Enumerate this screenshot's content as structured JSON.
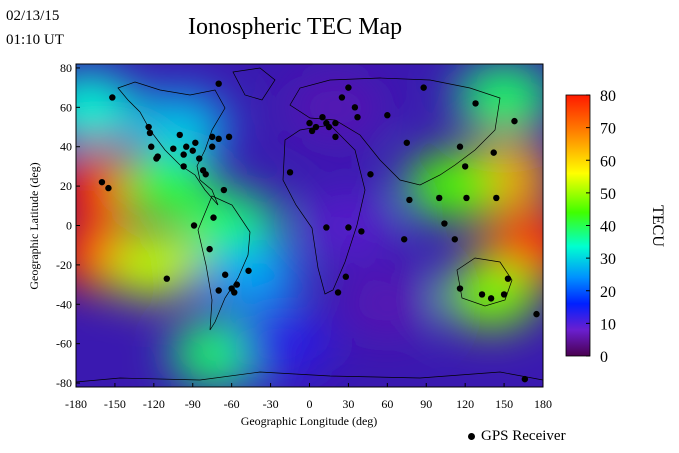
{
  "header": {
    "date": "02/13/15",
    "time": "01:10 UT"
  },
  "title": "Ionospheric TEC Map",
  "map": {
    "xlabel": "Geographic Longitude (deg)",
    "ylabel": "Geographic Latitude (deg)",
    "x_ticks": [
      "-180",
      "-150",
      "-120",
      "-90",
      "-60",
      "-30",
      "0",
      "30",
      "60",
      "90",
      "120",
      "150",
      "180"
    ],
    "y_ticks": [
      "80",
      "60",
      "40",
      "20",
      "0",
      "-20",
      "-40",
      "-60",
      "-80"
    ],
    "xlim": [
      -180,
      180
    ],
    "ylim": [
      -82,
      82
    ],
    "colormap": "jet",
    "zones": [
      {
        "lon": -160,
        "lat": 20,
        "tec": 80
      },
      {
        "lon": -165,
        "lat": -15,
        "tec": 80
      },
      {
        "lon": 170,
        "lat": -10,
        "tec": 78
      },
      {
        "lon": 150,
        "lat": 25,
        "tec": 65
      },
      {
        "lon": 110,
        "lat": 20,
        "tec": 50
      },
      {
        "lon": 140,
        "lat": -35,
        "tec": 52
      },
      {
        "lon": -110,
        "lat": 20,
        "tec": 48
      },
      {
        "lon": -120,
        "lat": -20,
        "tec": 55
      },
      {
        "lon": -60,
        "lat": 0,
        "tec": 45
      },
      {
        "lon": -70,
        "lat": -65,
        "tec": 45
      },
      {
        "lon": -45,
        "lat": -25,
        "tec": 32
      },
      {
        "lon": -100,
        "lat": 50,
        "tec": 35
      },
      {
        "lon": -170,
        "lat": 60,
        "tec": 40
      },
      {
        "lon": 150,
        "lat": 65,
        "tec": 45
      },
      {
        "lon": 30,
        "lat": 0,
        "tec": 10
      },
      {
        "lon": 20,
        "lat": 60,
        "tec": 8
      },
      {
        "lon": 60,
        "lat": -40,
        "tec": 8
      },
      {
        "lon": -20,
        "lat": -60,
        "tec": 15
      }
    ]
  },
  "colorbar": {
    "label": "TECU",
    "ticks": [
      "80",
      "70",
      "60",
      "50",
      "40",
      "30",
      "20",
      "10",
      "0"
    ],
    "min": 0,
    "max": 80
  },
  "receivers": [
    [
      -152,
      65
    ],
    [
      -124,
      50
    ],
    [
      -123,
      47
    ],
    [
      -122,
      40
    ],
    [
      -118,
      34
    ],
    [
      -117,
      35
    ],
    [
      -105,
      39
    ],
    [
      -100,
      46
    ],
    [
      -97,
      36
    ],
    [
      -97,
      30
    ],
    [
      -95,
      40
    ],
    [
      -90,
      38
    ],
    [
      -88,
      42
    ],
    [
      -85,
      34
    ],
    [
      -82,
      28
    ],
    [
      -80,
      26
    ],
    [
      -75,
      40
    ],
    [
      -75,
      45
    ],
    [
      -70,
      44
    ],
    [
      -62,
      45
    ],
    [
      -70,
      -33
    ],
    [
      -60,
      -32
    ],
    [
      -58,
      -34
    ],
    [
      -65,
      -25
    ],
    [
      -47,
      -23
    ],
    [
      -56,
      -30
    ],
    [
      -77,
      -12
    ],
    [
      -74,
      4
    ],
    [
      -89,
      0
    ],
    [
      -66,
      18
    ],
    [
      -110,
      -27
    ],
    [
      -160,
      22
    ],
    [
      -155,
      19
    ],
    [
      -70,
      72
    ],
    [
      0,
      52
    ],
    [
      2,
      48
    ],
    [
      10,
      55
    ],
    [
      15,
      50
    ],
    [
      13,
      52
    ],
    [
      5,
      50
    ],
    [
      20,
      52
    ],
    [
      25,
      65
    ],
    [
      30,
      70
    ],
    [
      35,
      60
    ],
    [
      37,
      55
    ],
    [
      20,
      45
    ],
    [
      60,
      56
    ],
    [
      75,
      42
    ],
    [
      88,
      70
    ],
    [
      -15,
      27
    ],
    [
      47,
      26
    ],
    [
      77,
      13
    ],
    [
      13,
      -1
    ],
    [
      30,
      -1
    ],
    [
      40,
      -3
    ],
    [
      22,
      -34
    ],
    [
      28,
      -26
    ],
    [
      73,
      -7
    ],
    [
      104,
      1
    ],
    [
      112,
      -7
    ],
    [
      100,
      14
    ],
    [
      116,
      40
    ],
    [
      121,
      14
    ],
    [
      120,
      30
    ],
    [
      128,
      62
    ],
    [
      142,
      37
    ],
    [
      144,
      14
    ],
    [
      158,
      53
    ],
    [
      116,
      -32
    ],
    [
      133,
      -35
    ],
    [
      140,
      -37
    ],
    [
      150,
      -35
    ],
    [
      153,
      -27
    ],
    [
      175,
      -45
    ],
    [
      166,
      -78
    ]
  ]
}
